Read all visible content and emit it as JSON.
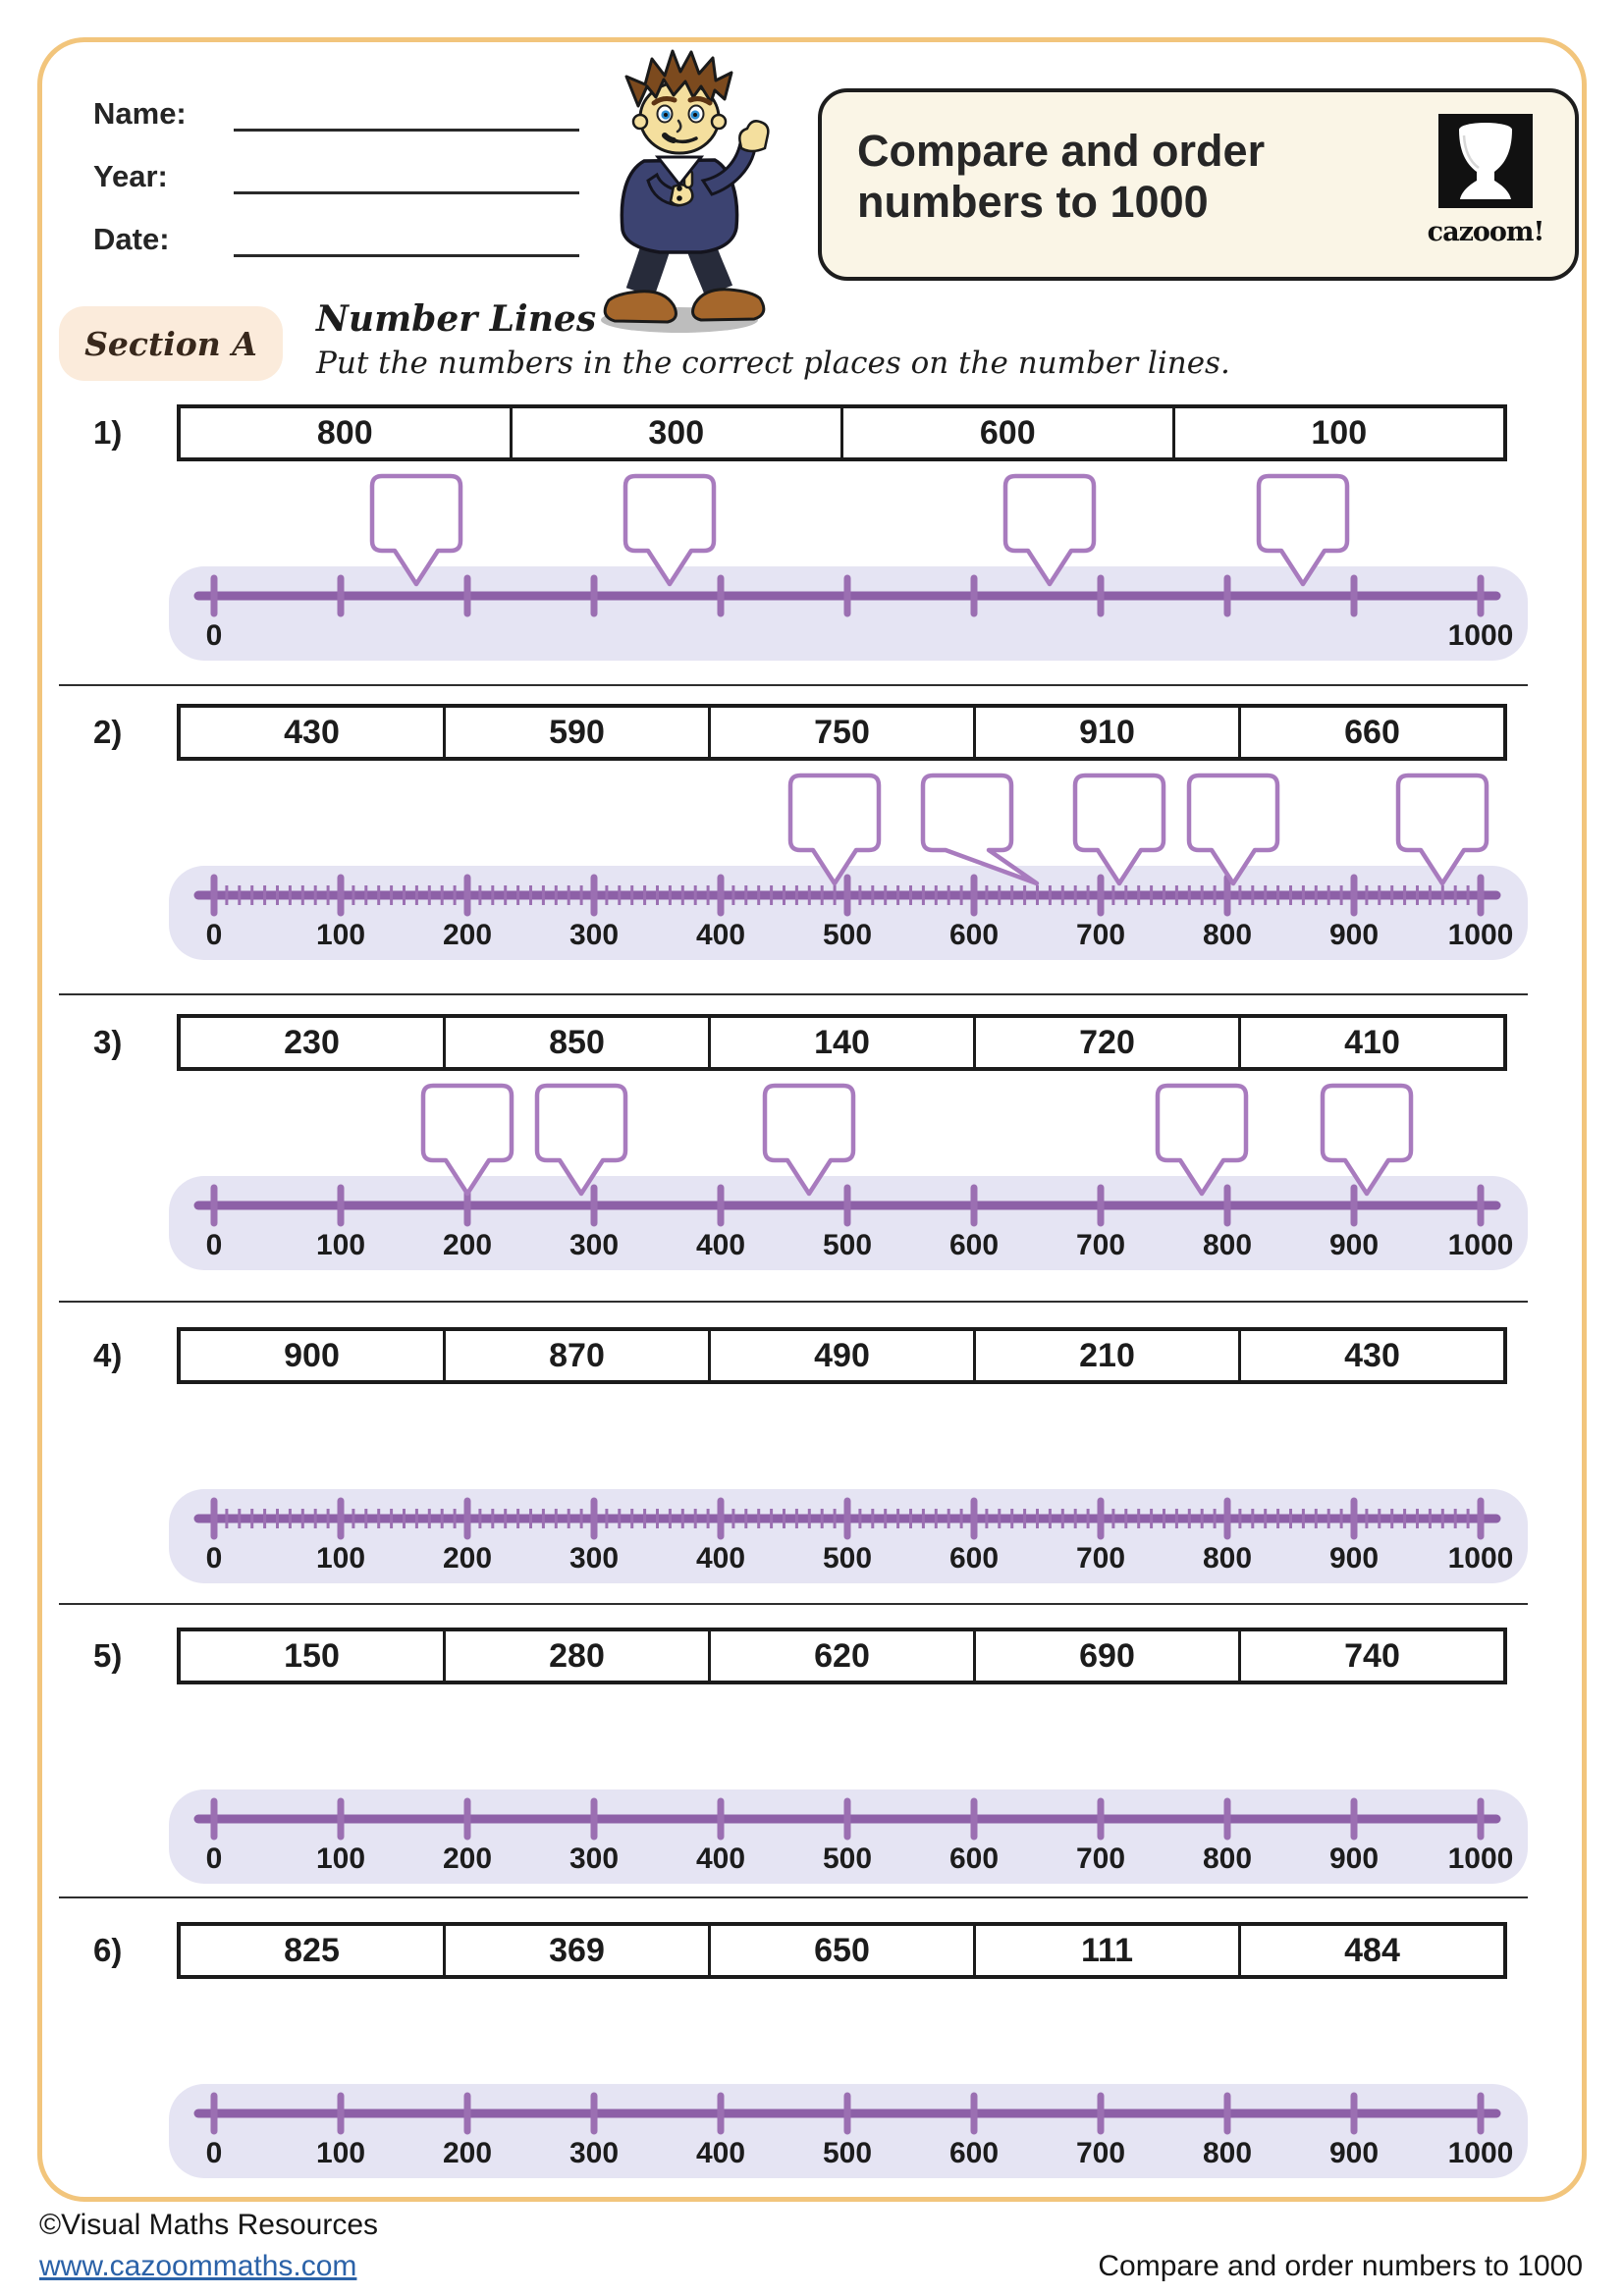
{
  "header": {
    "fields": [
      {
        "label": "Name:"
      },
      {
        "label": "Year:"
      },
      {
        "label": "Date:"
      }
    ],
    "title": "Compare and order numbers to 1000",
    "logo_text": "cazoom!"
  },
  "section": {
    "label": "Section A",
    "heading": "Number Lines",
    "instruction": "Put the numbers in the correct places on the number lines."
  },
  "problems": [
    {
      "label": "1)",
      "numbers": [
        "800",
        "300",
        "600",
        "100"
      ],
      "number_line": {
        "min": 0,
        "max": 1000,
        "tick_step": 100,
        "minor_tick_step": null,
        "tick_labels": [
          {
            "v": 0,
            "t": "0"
          },
          {
            "v": 1000,
            "t": "1000"
          }
        ],
        "bubbles": [
          {
            "box": 100,
            "tip": 100
          },
          {
            "box": 300,
            "tip": 300
          },
          {
            "box": 600,
            "tip": 600
          },
          {
            "box": 800,
            "tip": 800
          }
        ]
      }
    },
    {
      "label": "2)",
      "numbers": [
        "430",
        "590",
        "750",
        "910",
        "660"
      ],
      "number_line": {
        "min": 0,
        "max": 1000,
        "tick_step": 100,
        "minor_tick_step": 10,
        "tick_labels": [
          {
            "v": 0,
            "t": "0"
          },
          {
            "v": 100,
            "t": "100"
          },
          {
            "v": 200,
            "t": "200"
          },
          {
            "v": 300,
            "t": "300"
          },
          {
            "v": 400,
            "t": "400"
          },
          {
            "v": 500,
            "t": "500"
          },
          {
            "v": 600,
            "t": "600"
          },
          {
            "v": 700,
            "t": "700"
          },
          {
            "v": 800,
            "t": "800"
          },
          {
            "v": 900,
            "t": "900"
          },
          {
            "v": 1000,
            "t": "1000"
          }
        ],
        "bubbles": [
          {
            "box": 430,
            "tip": 430
          },
          {
            "box": 535,
            "tip": 590
          },
          {
            "box": 655,
            "tip": 655
          },
          {
            "box": 745,
            "tip": 745
          },
          {
            "box": 910,
            "tip": 910
          }
        ]
      }
    },
    {
      "label": "3)",
      "numbers": [
        "230",
        "850",
        "140",
        "720",
        "410"
      ],
      "number_line": {
        "min": 0,
        "max": 1000,
        "tick_step": 100,
        "minor_tick_step": null,
        "tick_labels": [
          {
            "v": 0,
            "t": "0"
          },
          {
            "v": 100,
            "t": "100"
          },
          {
            "v": 200,
            "t": "200"
          },
          {
            "v": 300,
            "t": "300"
          },
          {
            "v": 400,
            "t": "400"
          },
          {
            "v": 500,
            "t": "500"
          },
          {
            "v": 600,
            "t": "600"
          },
          {
            "v": 700,
            "t": "700"
          },
          {
            "v": 800,
            "t": "800"
          },
          {
            "v": 900,
            "t": "900"
          },
          {
            "v": 1000,
            "t": "1000"
          }
        ],
        "bubbles": [
          {
            "box": 140,
            "tip": 140
          },
          {
            "box": 230,
            "tip": 230
          },
          {
            "box": 410,
            "tip": 410
          },
          {
            "box": 720,
            "tip": 720
          },
          {
            "box": 850,
            "tip": 850
          }
        ]
      }
    },
    {
      "label": "4)",
      "numbers": [
        "900",
        "870",
        "490",
        "210",
        "430"
      ],
      "number_line": {
        "min": 0,
        "max": 1000,
        "tick_step": 100,
        "minor_tick_step": 10,
        "tick_labels": [
          {
            "v": 0,
            "t": "0"
          },
          {
            "v": 100,
            "t": "100"
          },
          {
            "v": 200,
            "t": "200"
          },
          {
            "v": 300,
            "t": "300"
          },
          {
            "v": 400,
            "t": "400"
          },
          {
            "v": 500,
            "t": "500"
          },
          {
            "v": 600,
            "t": "600"
          },
          {
            "v": 700,
            "t": "700"
          },
          {
            "v": 800,
            "t": "800"
          },
          {
            "v": 900,
            "t": "900"
          },
          {
            "v": 1000,
            "t": "1000"
          }
        ],
        "bubbles": []
      }
    },
    {
      "label": "5)",
      "numbers": [
        "150",
        "280",
        "620",
        "690",
        "740"
      ],
      "number_line": {
        "min": 0,
        "max": 1000,
        "tick_step": 100,
        "minor_tick_step": null,
        "tick_labels": [
          {
            "v": 0,
            "t": "0"
          },
          {
            "v": 100,
            "t": "100"
          },
          {
            "v": 200,
            "t": "200"
          },
          {
            "v": 300,
            "t": "300"
          },
          {
            "v": 400,
            "t": "400"
          },
          {
            "v": 500,
            "t": "500"
          },
          {
            "v": 600,
            "t": "600"
          },
          {
            "v": 700,
            "t": "700"
          },
          {
            "v": 800,
            "t": "800"
          },
          {
            "v": 900,
            "t": "900"
          },
          {
            "v": 1000,
            "t": "1000"
          }
        ],
        "bubbles": []
      }
    },
    {
      "label": "6)",
      "numbers": [
        "825",
        "369",
        "650",
        "111",
        "484"
      ],
      "number_line": {
        "min": 0,
        "max": 1000,
        "tick_step": 100,
        "minor_tick_step": null,
        "tick_labels": [
          {
            "v": 0,
            "t": "0"
          },
          {
            "v": 100,
            "t": "100"
          },
          {
            "v": 200,
            "t": "200"
          },
          {
            "v": 300,
            "t": "300"
          },
          {
            "v": 400,
            "t": "400"
          },
          {
            "v": 500,
            "t": "500"
          },
          {
            "v": 600,
            "t": "600"
          },
          {
            "v": 700,
            "t": "700"
          },
          {
            "v": 800,
            "t": "800"
          },
          {
            "v": 900,
            "t": "900"
          },
          {
            "v": 1000,
            "t": "1000"
          }
        ],
        "bubbles": []
      }
    }
  ],
  "colors": {
    "frame_orange": "#F2C57C",
    "track_lavender": "#E5E4F3",
    "line_purple": "#8D60A7",
    "tick_purple": "#9B6FB2",
    "bubble_purple": "#A87BBE",
    "link_blue": "#2b62a8"
  },
  "footer": {
    "copyright": "©Visual Maths Resources",
    "link": "www.cazoommaths.com",
    "right_text": "Compare and order numbers to 1000"
  }
}
